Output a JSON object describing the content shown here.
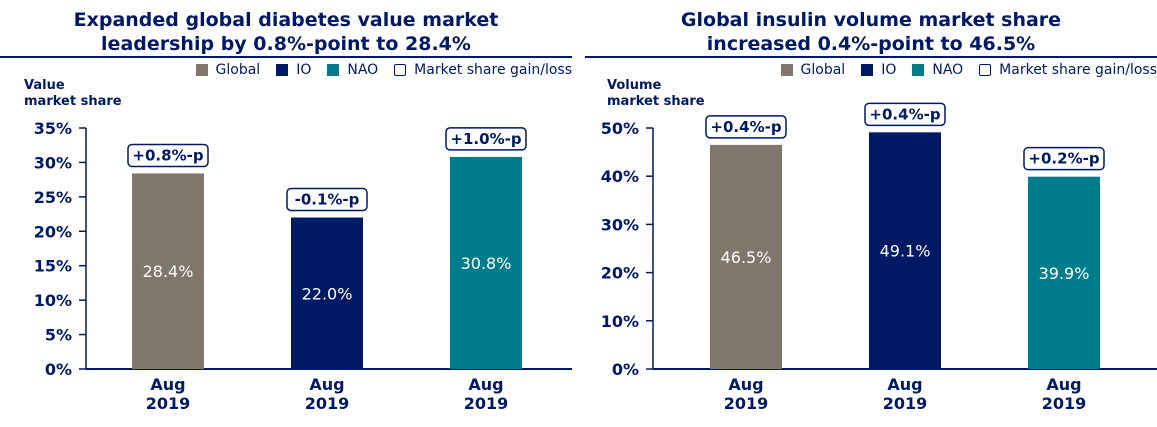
{
  "colors": {
    "Global": "#80766c",
    "IO": "#001965",
    "NAO": "#007c8a",
    "text": "#001965"
  },
  "legend": [
    {
      "label": "Global",
      "swatch": "Global"
    },
    {
      "label": "IO",
      "swatch": "IO"
    },
    {
      "label": "NAO",
      "swatch": "NAO"
    },
    {
      "label": "Market share gain/loss",
      "swatch": "outline"
    }
  ],
  "chart_data": [
    {
      "type": "bar",
      "title": "Expanded global diabetes value market leadership by 0.8%-point to 28.4%",
      "title_lines": [
        "Expanded global diabetes value market",
        "leadership by 0.8%-point to 28.4%"
      ],
      "ylabel": "Value market share",
      "ylabel_lines": [
        "Value",
        "market share"
      ],
      "ylim": [
        0,
        35
      ],
      "yticks": [
        0,
        5,
        10,
        15,
        20,
        25,
        30,
        35
      ],
      "categories": [
        "Aug 2019",
        "Aug 2019",
        "Aug 2019"
      ],
      "category_lines": [
        [
          "Aug",
          "2019"
        ],
        [
          "Aug",
          "2019"
        ],
        [
          "Aug",
          "2019"
        ]
      ],
      "series": [
        "Global",
        "IO",
        "NAO"
      ],
      "values": [
        28.4,
        22.0,
        30.8
      ],
      "value_labels": [
        "28.4%",
        "22.0%",
        "30.8%"
      ],
      "change_labels": [
        "+0.8%-p",
        "-0.1%-p",
        "+1.0%-p"
      ],
      "grid": false,
      "legend_position": "top-right"
    },
    {
      "type": "bar",
      "title": "Global insulin volume market share increased 0.4%-point to 46.5%",
      "title_lines": [
        "Global insulin volume market share",
        "increased 0.4%-point to 46.5%"
      ],
      "ylabel": "Volume market share",
      "ylabel_lines": [
        "Volume",
        "market share"
      ],
      "ylim": [
        0,
        50
      ],
      "yticks": [
        0,
        10,
        20,
        30,
        40,
        50
      ],
      "categories": [
        "Aug 2019",
        "Aug 2019",
        "Aug 2019"
      ],
      "category_lines": [
        [
          "Aug",
          "2019"
        ],
        [
          "Aug",
          "2019"
        ],
        [
          "Aug",
          "2019"
        ]
      ],
      "series": [
        "Global",
        "IO",
        "NAO"
      ],
      "values": [
        46.5,
        49.1,
        39.9
      ],
      "value_labels": [
        "46.5%",
        "49.1%",
        "39.9%"
      ],
      "change_labels": [
        "+0.4%-p",
        "+0.4%-p",
        "+0.2%-p"
      ],
      "grid": false,
      "legend_position": "top-right"
    }
  ]
}
